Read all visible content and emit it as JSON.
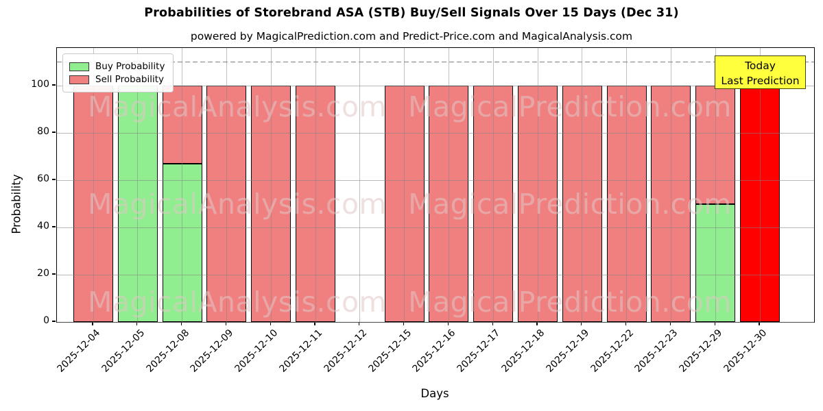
{
  "title": "Probabilities of Storebrand ASA (STB) Buy/Sell Signals Over 15 Days (Dec 31)",
  "subtitle": "powered by MagicalPrediction.com and Predict-Price.com and MagicalAnalysis.com",
  "legend": {
    "buy_label": "Buy Probability",
    "sell_label": "Sell Probability"
  },
  "annotation": {
    "line1": "Today",
    "line2": "Last Prediction",
    "bg_color": "#ffff3d",
    "text_color": "#000000"
  },
  "watermarks": {
    "left_text": "MagicalAnalysis.com",
    "right_text": "MagicalPrediction.com",
    "color": "rgba(226,198,198,0.55)"
  },
  "colors": {
    "buy": "#90ee90",
    "sell": "#f08080",
    "today_bar": "#ff0000",
    "bar_edge": "#000000",
    "grid": "#b0b0b0",
    "dashed_line": "#808080"
  },
  "chart_data": {
    "type": "bar",
    "stacked": true,
    "title": "Probabilities of Storebrand ASA (STB) Buy/Sell Signals Over 15 Days (Dec 31)",
    "xlabel": "Days",
    "ylabel": "Probability",
    "categories": [
      "2025-12-04",
      "2025-12-05",
      "2025-12-08",
      "2025-12-09",
      "2025-12-10",
      "2025-12-11",
      "2025-12-12",
      "2025-12-15",
      "2025-12-16",
      "2025-12-17",
      "2025-12-18",
      "2025-12-19",
      "2025-12-22",
      "2025-12-23",
      "2025-12-29",
      "2025-12-30"
    ],
    "series": [
      {
        "name": "Buy Probability",
        "color": "#90ee90",
        "values": [
          0,
          100,
          67,
          0,
          0,
          0,
          null,
          0,
          0,
          0,
          0,
          0,
          0,
          0,
          50,
          0
        ]
      },
      {
        "name": "Sell Probability",
        "color": "#f08080",
        "values": [
          100,
          0,
          33,
          100,
          100,
          100,
          null,
          100,
          100,
          100,
          100,
          100,
          100,
          100,
          50,
          100
        ]
      }
    ],
    "today_index": 15,
    "today_bar_color": "#ff0000",
    "yticks": [
      0,
      20,
      40,
      60,
      80,
      100
    ],
    "ylim": [
      0,
      116
    ],
    "dashed_line_y": 110,
    "grid": true,
    "legend_position": "upper left"
  }
}
